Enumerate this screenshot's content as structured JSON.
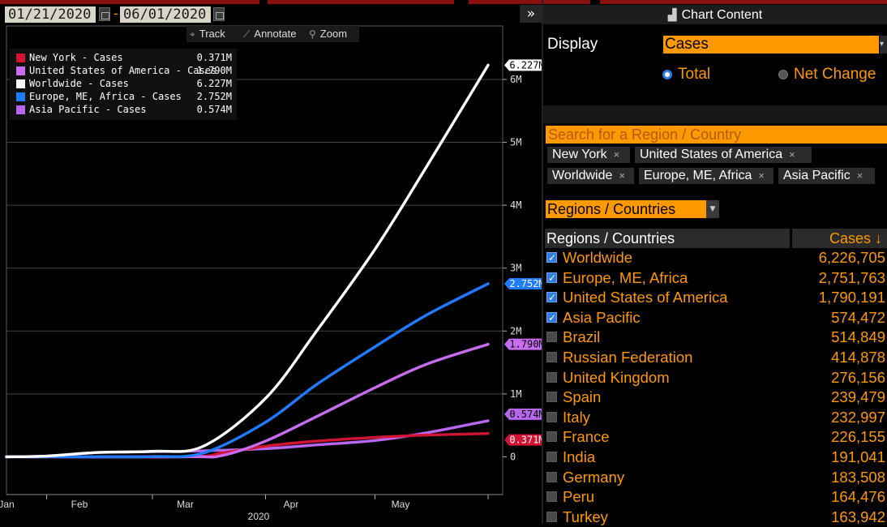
{
  "date_range": {
    "start": "01/21/2020",
    "end": "06/01/2020",
    "separator": "-"
  },
  "collapse_button": "»",
  "toolbar": [
    {
      "icon": "crosshair-icon",
      "glyph": "⌖",
      "label": "Track"
    },
    {
      "icon": "pencil-icon",
      "glyph": "⟋",
      "label": "Annotate"
    },
    {
      "icon": "magnifier-icon",
      "glyph": "⚲",
      "label": "Zoom"
    }
  ],
  "chart_data": {
    "type": "line",
    "title": "",
    "xlabel": "2020",
    "ylabel": "",
    "x_tick_labels": [
      "Jan",
      "Feb",
      "Mar",
      "Apr",
      "May"
    ],
    "x_tick_dates": [
      "2020-01-21",
      "2020-02-10",
      "2020-03-10",
      "2020-04-08",
      "2020-05-08"
    ],
    "y_tick_labels": [
      "0",
      "1M",
      "2M",
      "3M",
      "4M",
      "5M",
      "6M"
    ],
    "y_ticks": [
      0,
      1000000,
      2000000,
      3000000,
      4000000,
      5000000,
      6000000
    ],
    "ylim": [
      -600000,
      6850000
    ],
    "xlim": [
      "2020-01-21",
      "2020-06-05"
    ],
    "grid": true,
    "legend_position": "top-left",
    "series": [
      {
        "name": "New York - Cases",
        "value_label": "0.371M",
        "color": "#d21434",
        "x": [
          "2020-01-21",
          "2020-03-10",
          "2020-03-20",
          "2020-04-01",
          "2020-04-15",
          "2020-05-01",
          "2020-05-15",
          "2020-06-01"
        ],
        "y": [
          0,
          1000,
          60000,
          170000,
          250000,
          310000,
          345000,
          371000
        ]
      },
      {
        "name": "United States of America - Cases",
        "value_label": "1.790M",
        "color": "#c86cf0",
        "x": [
          "2020-01-21",
          "2020-03-10",
          "2020-03-20",
          "2020-04-01",
          "2020-04-15",
          "2020-05-01",
          "2020-05-15",
          "2020-06-01"
        ],
        "y": [
          0,
          1000,
          20000,
          250000,
          640000,
          1100000,
          1470000,
          1790000
        ]
      },
      {
        "name": "Worldwide - Cases",
        "value_label": "6.227M",
        "color": "#ffffff",
        "x": [
          "2020-01-21",
          "2020-02-01",
          "2020-02-15",
          "2020-03-01",
          "2020-03-15",
          "2020-04-01",
          "2020-04-15",
          "2020-05-01",
          "2020-05-15",
          "2020-06-01"
        ],
        "y": [
          300,
          12000,
          69000,
          88000,
          170000,
          930000,
          2000000,
          3300000,
          4600000,
          6227000
        ]
      },
      {
        "name": "Europe, ME, Africa - Cases",
        "value_label": "2.752M",
        "color": "#1f7bff",
        "x": [
          "2020-01-21",
          "2020-02-20",
          "2020-03-01",
          "2020-03-15",
          "2020-04-01",
          "2020-04-15",
          "2020-05-01",
          "2020-05-15",
          "2020-06-01"
        ],
        "y": [
          0,
          100,
          5000,
          60000,
          550000,
          1150000,
          1750000,
          2250000,
          2752000
        ]
      },
      {
        "name": "Asia Pacific - Cases",
        "value_label": "0.574M",
        "color": "#b667ee",
        "x": [
          "2020-01-21",
          "2020-02-01",
          "2020-02-15",
          "2020-03-01",
          "2020-03-15",
          "2020-04-01",
          "2020-04-15",
          "2020-05-01",
          "2020-05-15",
          "2020-06-01"
        ],
        "y": [
          300,
          12000,
          68000,
          82000,
          95000,
          130000,
          190000,
          260000,
          380000,
          574000
        ]
      }
    ]
  },
  "panel": {
    "title": "Chart Content",
    "display_label": "Display",
    "display_value": "Cases",
    "radio_total": "Total",
    "radio_net_change": "Net Change",
    "search_placeholder": "Search for a Region / Country",
    "chips": [
      "New York",
      "United States of America",
      "Worldwide",
      "Europe, ME, Africa",
      "Asia Pacific"
    ],
    "chip_remove": "×",
    "regions_select": "Regions / Countries",
    "table_headers": {
      "name": "Regions / Countries",
      "value": "Cases ↓"
    },
    "rows": [
      {
        "name": "Worldwide",
        "value": "6,226,705",
        "checked": true
      },
      {
        "name": "Europe, ME, Africa",
        "value": "2,751,763",
        "checked": true
      },
      {
        "name": "United States of America",
        "value": "1,790,191",
        "checked": true
      },
      {
        "name": "Asia Pacific",
        "value": "574,472",
        "checked": true
      },
      {
        "name": "Brazil",
        "value": "514,849",
        "checked": false
      },
      {
        "name": "Russian Federation",
        "value": "414,878",
        "checked": false
      },
      {
        "name": "United Kingdom",
        "value": "276,156",
        "checked": false
      },
      {
        "name": "Spain",
        "value": "239,479",
        "checked": false
      },
      {
        "name": "Italy",
        "value": "232,997",
        "checked": false
      },
      {
        "name": "France",
        "value": "226,155",
        "checked": false
      },
      {
        "name": "India",
        "value": "191,041",
        "checked": false
      },
      {
        "name": "Germany",
        "value": "183,508",
        "checked": false
      },
      {
        "name": "Peru",
        "value": "164,476",
        "checked": false
      },
      {
        "name": "Turkey",
        "value": "163,942",
        "checked": false
      }
    ]
  }
}
